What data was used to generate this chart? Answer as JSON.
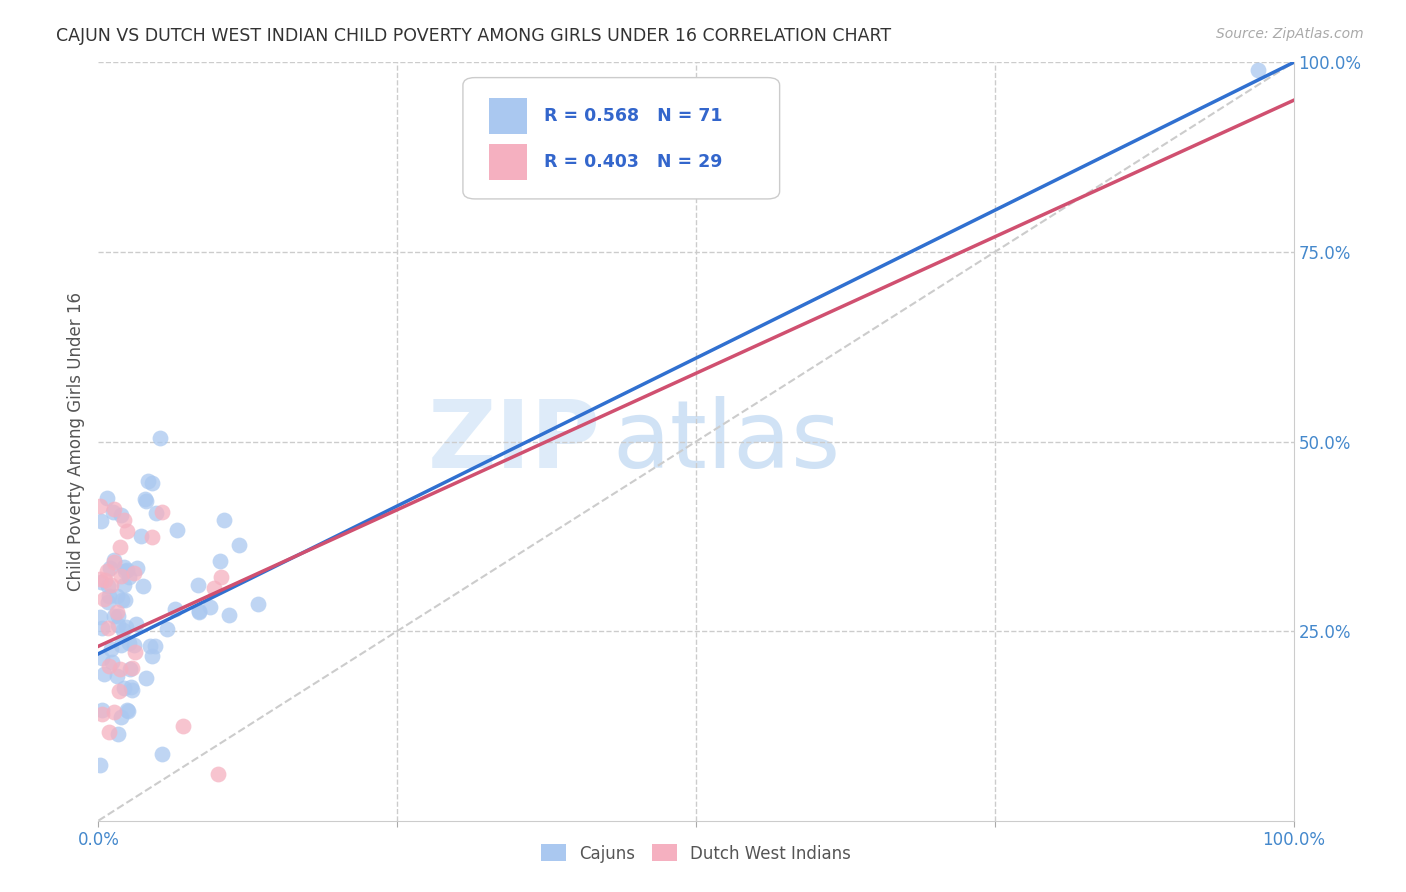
{
  "title": "CAJUN VS DUTCH WEST INDIAN CHILD POVERTY AMONG GIRLS UNDER 16 CORRELATION CHART",
  "source": "Source: ZipAtlas.com",
  "ylabel": "Child Poverty Among Girls Under 16",
  "cajun_R": 0.568,
  "cajun_N": 71,
  "dwi_R": 0.403,
  "dwi_N": 29,
  "legend_cajuns": "Cajuns",
  "legend_dwi": "Dutch West Indians",
  "xlim": [
    0,
    1
  ],
  "ylim": [
    0,
    1
  ],
  "grid_color": "#cccccc",
  "background_color": "#ffffff",
  "cajun_color": "#aac8f0",
  "dwi_color": "#f5b0c0",
  "cajun_line_color": "#3070d0",
  "dwi_line_color": "#d05070",
  "ref_line_color": "#cccccc",
  "title_color": "#333333",
  "axis_label_color": "#555555",
  "tick_color": "#4488cc",
  "watermark_color": "#ddeeff",
  "legend_text_color": "#3366cc"
}
